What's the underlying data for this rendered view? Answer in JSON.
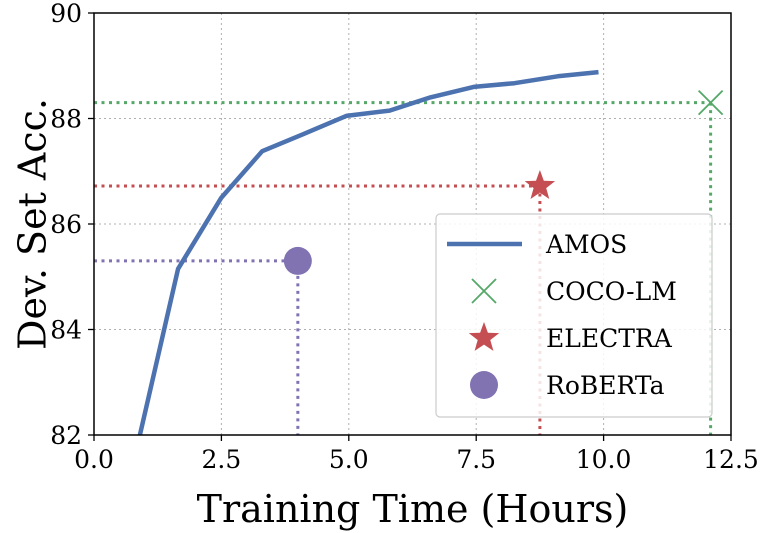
{
  "chart_data": {
    "type": "line",
    "title": "",
    "xlabel": "Training Time (Hours)",
    "ylabel": "Dev. Set Acc.",
    "xlim": [
      0,
      12.5
    ],
    "ylim": [
      82,
      90
    ],
    "xticks": [
      0,
      2.5,
      5,
      7.5,
      10,
      12.5
    ],
    "xtick_labels": [
      "0.0",
      "2.5",
      "5.0",
      "7.5",
      "10.0",
      "12.5"
    ],
    "yticks": [
      82,
      84,
      86,
      88,
      90
    ],
    "ytick_labels": [
      "82",
      "84",
      "86",
      "88",
      "90"
    ],
    "grid": true,
    "legend_position": "lower-right",
    "series": [
      {
        "name": "AMOS",
        "kind": "line",
        "color": "#4c72b0",
        "x": [
          0.9,
          1.65,
          2.5,
          3.3,
          4.1,
          4.95,
          5.8,
          6.6,
          7.45,
          8.25,
          9.1,
          9.9
        ],
        "y": [
          82.0,
          85.15,
          86.5,
          87.38,
          87.7,
          88.05,
          88.15,
          88.4,
          88.6,
          88.67,
          88.8,
          88.88
        ]
      },
      {
        "name": "COCO-LM",
        "kind": "marker",
        "marker": "x",
        "color": "#55a868",
        "x": [
          12.1
        ],
        "y": [
          88.3
        ]
      },
      {
        "name": "ELECTRA",
        "kind": "marker",
        "marker": "star",
        "color": "#c44e52",
        "x": [
          8.75
        ],
        "y": [
          86.72
        ]
      },
      {
        "name": "RoBERTa",
        "kind": "marker",
        "marker": "circle",
        "color": "#8172b2",
        "x": [
          4.0
        ],
        "y": [
          85.3
        ]
      }
    ]
  }
}
